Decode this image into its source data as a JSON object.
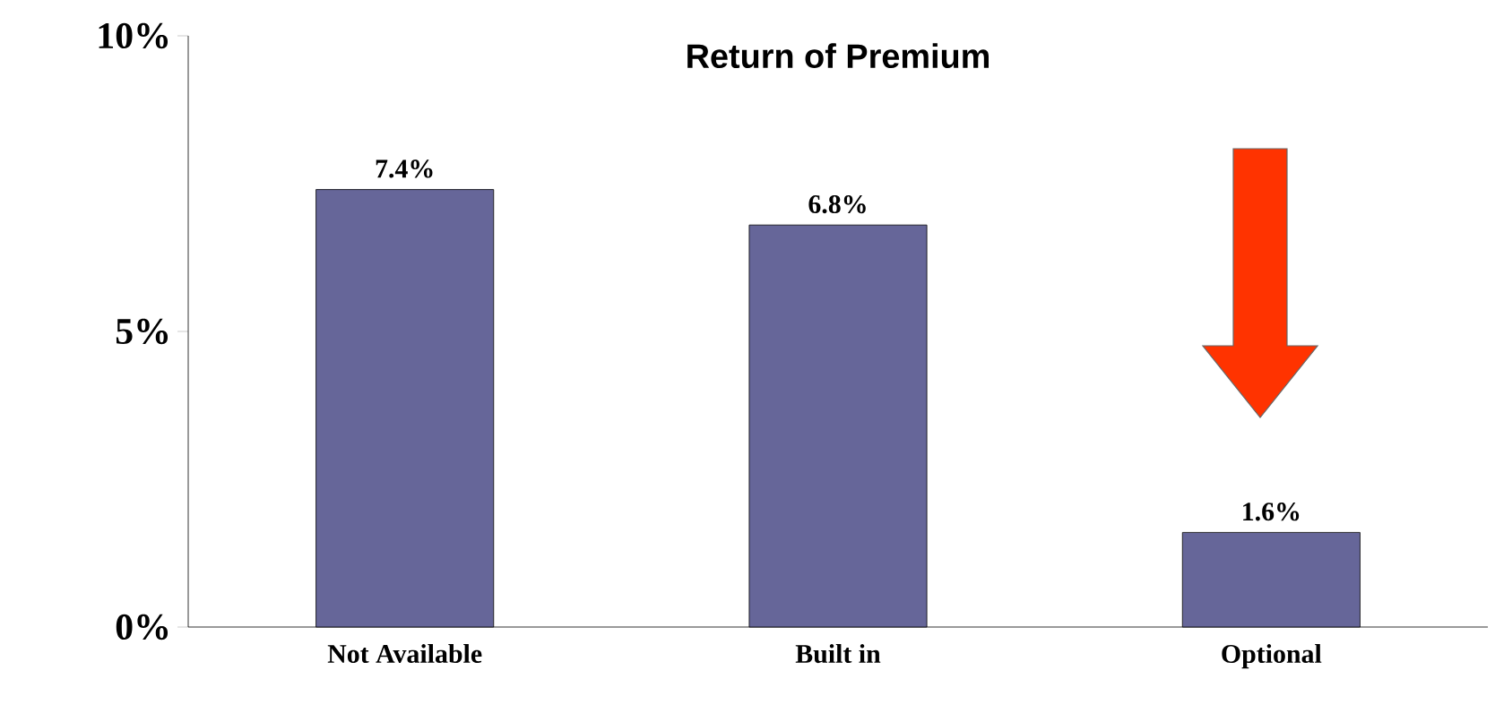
{
  "chart_data": {
    "type": "bar",
    "title": "Return of Premium",
    "categories": [
      "Not Available",
      "Built in",
      "Optional"
    ],
    "values": [
      7.4,
      6.8,
      1.6
    ],
    "color": "#666699",
    "value_labels": [
      "7.4%",
      "6.8%",
      "1.6%"
    ],
    "ylim": [
      0,
      10
    ],
    "yticks": [
      {
        "value": 0,
        "label": "0%"
      },
      {
        "value": 5,
        "label": "5%"
      },
      {
        "value": 10,
        "label": "10%"
      }
    ]
  }
}
